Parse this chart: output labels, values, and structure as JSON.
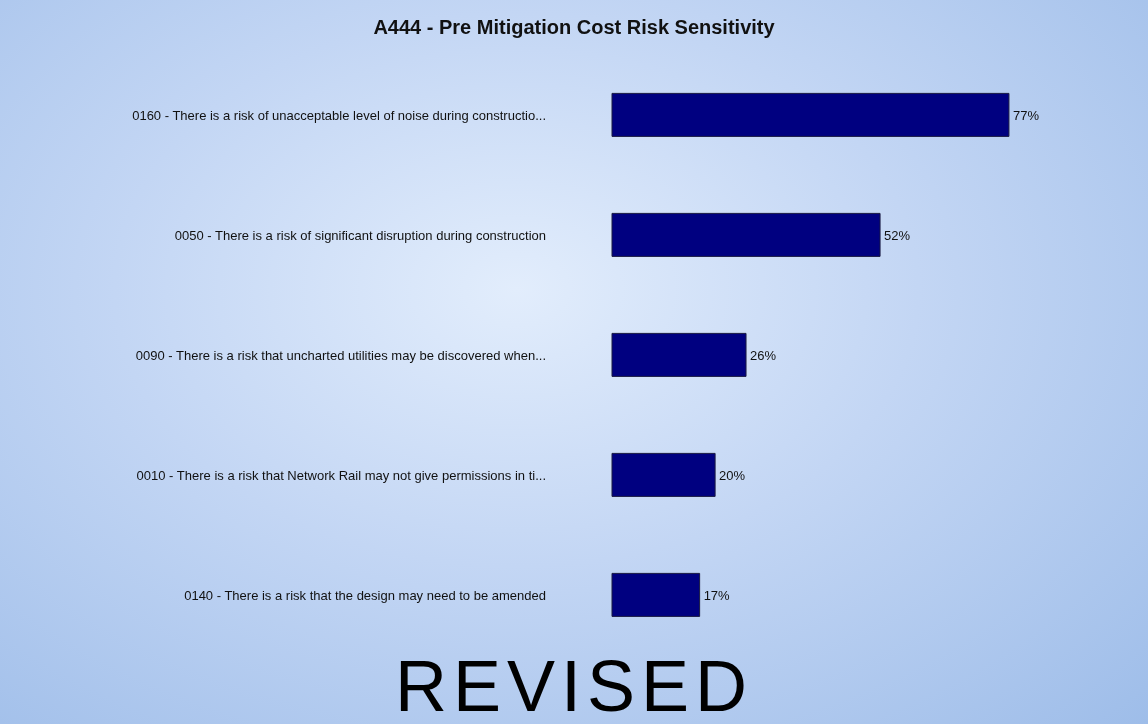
{
  "chart_data": {
    "type": "bar",
    "orientation": "horizontal",
    "title": "A444 - Pre Mitigation Cost Risk Sensitivity",
    "categories": [
      "0160 - There is a risk of unacceptable level of noise during constructio...",
      "0050 - There is a risk of significant disruption during construction",
      "0090 - There is a risk that uncharted utilities may be discovered when...",
      "0010 - There is a risk that Network Rail may not give permissions in ti...",
      "0140 - There is a risk that the design may need to be amended"
    ],
    "values": [
      77,
      52,
      26,
      20,
      17
    ],
    "value_labels": [
      "77%",
      "52%",
      "26%",
      "20%",
      "17%"
    ],
    "color": "#000080",
    "annotations": [
      "REVISED"
    ],
    "grid": false,
    "legend": false
  }
}
